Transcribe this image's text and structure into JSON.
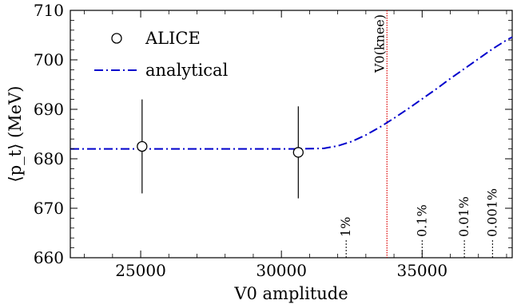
{
  "chart_data": {
    "type": "scatter",
    "xlabel": "V0 amplitude",
    "ylabel": "⟨p_t⟩ (MeV)",
    "xlim": [
      22500,
      38200
    ],
    "ylim": [
      660,
      710
    ],
    "xticks": [
      25000,
      30000,
      35000
    ],
    "yticks": [
      660,
      670,
      680,
      690,
      700,
      710
    ],
    "grid": false,
    "legend_position": "top-left",
    "series": [
      {
        "name": "ALICE",
        "kind": "points-with-errorbars",
        "color": "#000000",
        "points": [
          {
            "x": 25050,
            "y": 682.5,
            "yerr_low": 9.5,
            "yerr_high": 9.5
          },
          {
            "x": 30600,
            "y": 681.3,
            "yerr_low": 9.3,
            "yerr_high": 9.3
          }
        ]
      },
      {
        "name": "analytical",
        "kind": "line",
        "style": "dashdot",
        "color": "#0000cc",
        "x": [
          22500,
          30500,
          31500,
          32000,
          32500,
          33000,
          33500,
          34000,
          34500,
          35000,
          35500,
          36000,
          36500,
          37000,
          37500,
          38000,
          38200
        ],
        "y": [
          682.0,
          682.0,
          682.1,
          682.6,
          683.5,
          684.8,
          686.4,
          688.2,
          690.1,
          692.1,
          694.1,
          696.2,
          698.2,
          700.2,
          702.2,
          704.0,
          704.6
        ]
      }
    ],
    "vline": {
      "x": 33750,
      "label": "V0(knee)",
      "color": "#dd0000"
    },
    "percentile_marks": [
      {
        "x": 32300,
        "label": "1%"
      },
      {
        "x": 35000,
        "label": "0.1%"
      },
      {
        "x": 36500,
        "label": "0.01%"
      },
      {
        "x": 37500,
        "label": "0.001%"
      }
    ]
  }
}
